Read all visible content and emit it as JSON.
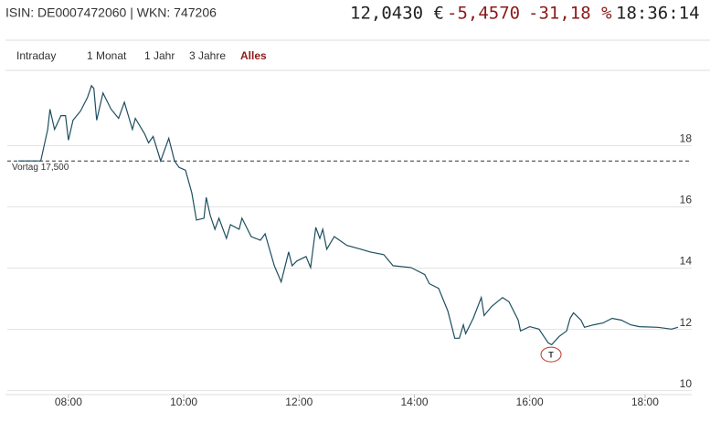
{
  "chart_data": {
    "type": "line",
    "header": {
      "id_line": "ISIN: DE0007472060 | WKN: 747206",
      "price": "12,0430 €",
      "change": "-5,4570",
      "change_pct": "-31,18 %",
      "time": "18:36:14"
    },
    "tabs": [
      "Intraday",
      "1 Monat",
      "1 Jahr",
      "3 Jahre",
      "Alles"
    ],
    "active_tab": 4,
    "x": [
      7.13,
      7.52,
      7.64,
      7.68,
      7.76,
      7.87,
      7.95,
      8.0,
      8.08,
      8.21,
      8.33,
      8.4,
      8.44,
      8.49,
      8.6,
      8.74,
      8.87,
      8.97,
      9.11,
      9.16,
      9.32,
      9.39,
      9.47,
      9.6,
      9.74,
      9.84,
      9.92,
      10.03,
      10.14,
      10.22,
      10.35,
      10.39,
      10.46,
      10.54,
      10.61,
      10.74,
      10.81,
      10.96,
      11.01,
      11.17,
      11.33,
      11.41,
      11.57,
      11.69,
      11.82,
      11.88,
      11.96,
      12.12,
      12.2,
      12.29,
      12.36,
      12.41,
      12.48,
      12.61,
      12.83,
      13.07,
      13.23,
      13.47,
      13.63,
      13.94,
      14.18,
      14.26,
      14.42,
      14.58,
      14.7,
      14.78,
      14.85,
      14.89,
      15.02,
      15.16,
      15.21,
      15.34,
      15.53,
      15.64,
      15.8,
      15.84,
      16.0,
      16.16,
      16.32,
      16.38,
      16.51,
      16.64,
      16.7,
      16.76,
      16.89,
      16.95,
      17.11,
      17.27,
      17.43,
      17.59,
      17.75,
      17.9,
      18.22,
      18.46,
      18.57
    ],
    "series": [
      {
        "color": "#1d4e5f",
        "values": [
          17.5,
          17.5,
          18.53,
          19.19,
          18.53,
          18.98,
          18.98,
          18.18,
          18.83,
          19.13,
          19.57,
          19.96,
          19.87,
          18.83,
          19.72,
          19.19,
          18.89,
          19.42,
          18.53,
          18.89,
          18.39,
          18.09,
          18.3,
          17.5,
          18.24,
          17.5,
          17.29,
          17.2,
          16.46,
          15.57,
          15.63,
          16.31,
          15.72,
          15.27,
          15.63,
          14.97,
          15.42,
          15.27,
          15.63,
          15.03,
          14.91,
          15.12,
          14.08,
          13.55,
          14.53,
          14.08,
          14.23,
          14.38,
          14.02,
          15.33,
          14.97,
          15.27,
          14.62,
          15.03,
          14.74,
          14.62,
          14.53,
          14.44,
          14.08,
          14.02,
          13.79,
          13.49,
          13.34,
          12.6,
          11.71,
          11.71,
          12.15,
          11.86,
          12.36,
          13.04,
          12.45,
          12.75,
          13.04,
          12.9,
          12.3,
          11.95,
          12.09,
          12.01,
          11.56,
          11.5,
          11.77,
          11.95,
          12.36,
          12.54,
          12.3,
          12.07,
          12.15,
          12.21,
          12.36,
          12.3,
          12.15,
          12.09,
          12.07,
          12.01,
          12.07
        ]
      }
    ],
    "xlim": [
      6.94,
      18.81
    ],
    "ylim": [
      9.87,
      20.46
    ],
    "xticks": [
      {
        "value": 8,
        "label": "08:00"
      },
      {
        "value": 10,
        "label": "10:00"
      },
      {
        "value": 12,
        "label": "12:00"
      },
      {
        "value": 14,
        "label": "14:00"
      },
      {
        "value": 16,
        "label": "16:00"
      },
      {
        "value": 18,
        "label": "18:00"
      }
    ],
    "yticks": [
      10,
      12,
      14,
      16,
      18
    ],
    "reference_line": {
      "value": 17.5,
      "label": "Vortag 17,500"
    },
    "annotations": [
      {
        "x": 16.37,
        "y": 11.18,
        "label": "T"
      }
    ],
    "grid": true
  }
}
